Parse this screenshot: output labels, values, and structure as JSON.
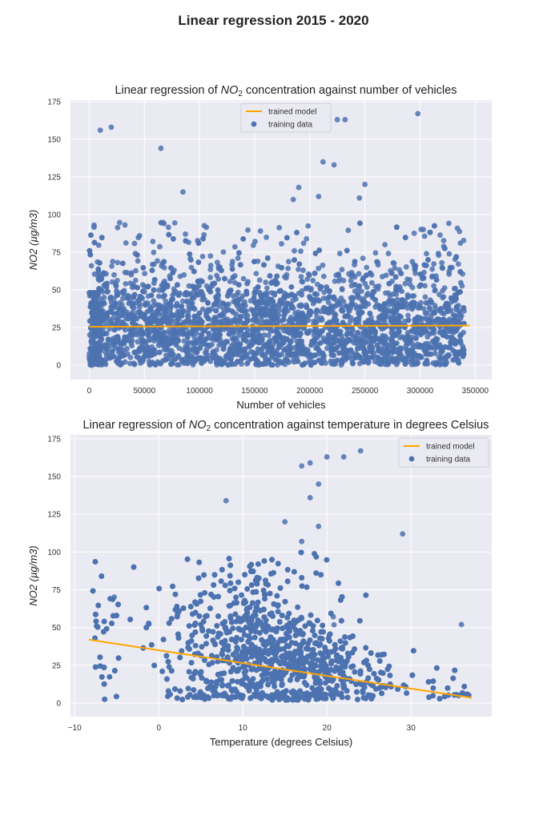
{
  "figure_title": "Linear regression 2015 - 2020",
  "chart_data": [
    {
      "type": "scatter",
      "title_pre": "Linear regression of ",
      "title_sub_main": "NO",
      "title_sub": "2",
      "title_post": " concentration against number of vehicles",
      "xlabel": "Number of vehicles",
      "ylabel": "NO2 (µg/m3)",
      "xlim": [
        -17000,
        365000
      ],
      "ylim": [
        -9.6,
        176
      ],
      "xticks": [
        0,
        50000,
        100000,
        150000,
        200000,
        250000,
        300000,
        350000
      ],
      "yticks": [
        0,
        25,
        50,
        75,
        100,
        125,
        150,
        175
      ],
      "grid": true,
      "legend": {
        "placement": "top-center",
        "entries": [
          "trained model",
          "training data"
        ]
      },
      "regression_line": {
        "x": [
          0,
          345000
        ],
        "y": [
          25.5,
          26.3
        ],
        "color": "#FFA500"
      },
      "cloud": {
        "x_range": [
          0,
          340000
        ],
        "y_range": [
          0,
          95
        ],
        "typical_y": 25,
        "count": 3500,
        "color": "#4C72B0"
      },
      "outliers": {
        "x": [
          10000,
          20000,
          65000,
          225000,
          232000,
          298000,
          212000,
          222000,
          250000,
          85000,
          190000,
          245000,
          208000,
          185000,
          2000
        ],
        "y": [
          156,
          158,
          144,
          163,
          163,
          167,
          135,
          133,
          120,
          115,
          118,
          111,
          112,
          110,
          66
        ]
      }
    },
    {
      "type": "scatter",
      "title_pre": "Linear regression of ",
      "title_sub_main": "NO",
      "title_sub": "2",
      "title_post": " concentration against temperature in degrees Celsius",
      "xlabel": "Temperature (degrees Celsius)",
      "ylabel": "NO2 (µg/m3)",
      "xlim": [
        -10.5,
        39.6
      ],
      "ylim": [
        -9,
        177.6
      ],
      "xticks": [
        -10,
        0,
        10,
        20,
        30
      ],
      "xtick_labels": [
        "−10",
        "0",
        "10",
        "20",
        "30"
      ],
      "yticks": [
        0,
        25,
        50,
        75,
        100,
        125,
        150,
        175
      ],
      "grid": true,
      "legend": {
        "placement": "top-right",
        "entries": [
          "trained model",
          "training data"
        ]
      },
      "regression_line": {
        "x": [
          -8.3,
          37.2
        ],
        "y": [
          42,
          3.5
        ],
        "color": "#FFA500"
      },
      "cloud": {
        "x_range": [
          -8.3,
          37
        ],
        "y_range": [
          0,
          95
        ],
        "typical_y": 25,
        "count": 3500,
        "color": "#4C72B0"
      },
      "outliers": {
        "x": [
          8,
          15,
          17,
          18,
          19,
          20,
          22,
          24,
          18,
          29,
          19,
          17,
          36
        ],
        "y": [
          134,
          120,
          157,
          159,
          145,
          163,
          163,
          167,
          136,
          112,
          117,
          107,
          52
        ]
      }
    }
  ]
}
